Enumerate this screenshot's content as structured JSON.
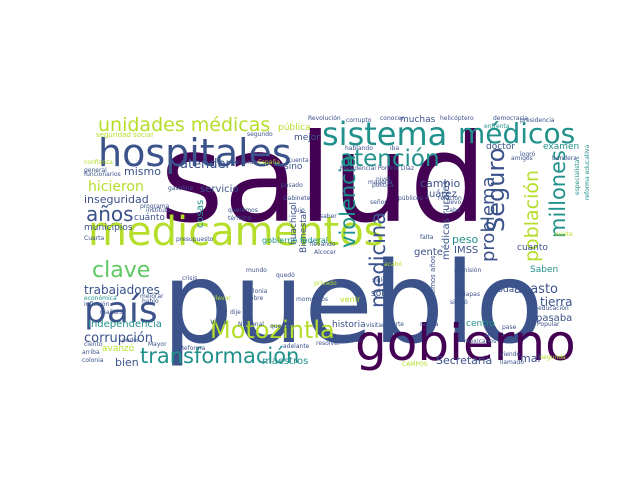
{
  "words": [
    {
      "text": "salud",
      "color": "#440154"
    },
    {
      "text": "pueblo",
      "color": "#3b528b"
    },
    {
      "text": "gobierno",
      "color": "#440154"
    },
    {
      "text": "medicamentos",
      "color": "#b5de2b"
    },
    {
      "text": "hospitales",
      "color": "#3b528b"
    },
    {
      "text": "sistema",
      "color": "#21918c"
    },
    {
      "text": "médicos",
      "color": "#21918c"
    },
    {
      "text": "país",
      "color": "#3b528b"
    },
    {
      "text": "Motozintla",
      "color": "#b5de2b"
    },
    {
      "text": "transformación",
      "color": "#21918c"
    },
    {
      "text": "atención",
      "color": "#21918c"
    },
    {
      "text": "unidades médicas",
      "color": "#b5de2b"
    },
    {
      "text": "clave",
      "color": "#5ec962"
    },
    {
      "text": "años",
      "color": "#3b528b"
    },
    {
      "text": "Seguro",
      "color": "#3b528b"
    },
    {
      "text": "problema",
      "color": "#3b528b"
    },
    {
      "text": "violencia",
      "color": "#21918c"
    },
    {
      "text": "medicina",
      "color": "#3b528b"
    },
    {
      "text": "millones",
      "color": "#21918c"
    },
    {
      "text": "población",
      "color": "#b5de2b"
    },
    {
      "text": "corrupción",
      "color": "#3b528b"
    },
    {
      "text": "trabajadores",
      "color": "#3b528b"
    },
    {
      "text": "hicieron",
      "color": "#b5de2b"
    },
    {
      "text": "inseguridad",
      "color": "#3b528b"
    },
    {
      "text": "atender",
      "color": "#3b528b"
    },
    {
      "text": "mismo",
      "color": "#3b528b"
    },
    {
      "text": "Independencia",
      "color": "#21918c"
    },
    {
      "text": "Secretaría",
      "color": "#3b528b"
    },
    {
      "text": "cambio",
      "color": "#3b528b"
    },
    {
      "text": "abasto",
      "color": "#3b528b"
    },
    {
      "text": "tierra",
      "color": "#3b528b"
    },
    {
      "text": "IMSS",
      "color": "#3b528b"
    },
    {
      "text": "peso",
      "color": "#21918c"
    },
    {
      "text": "gente",
      "color": "#3b528b"
    },
    {
      "text": "cuánto",
      "color": "#3b528b"
    },
    {
      "text": "servicio",
      "color": "#3b528b"
    },
    {
      "text": "municipios",
      "color": "#3b528b"
    },
    {
      "text": "sino",
      "color": "#3b528b"
    },
    {
      "text": "mal",
      "color": "#3b528b"
    },
    {
      "text": "historia",
      "color": "#3b528b"
    },
    {
      "text": "maestros",
      "color": "#21918c"
    },
    {
      "text": "muchas",
      "color": "#3b528b"
    },
    {
      "text": "doctor",
      "color": "#3b528b"
    },
    {
      "text": "examen",
      "color": "#21918c"
    },
    {
      "text": "pública",
      "color": "#b5de2b"
    },
    {
      "text": "pasaba",
      "color": "#3b528b"
    },
    {
      "text": "Saben",
      "color": "#21918c"
    },
    {
      "text": "cuanto",
      "color": "#3b528b"
    },
    {
      "text": "sólo",
      "color": "#3b528b"
    },
    {
      "text": "toda",
      "color": "#3b528b"
    },
    {
      "text": "bien",
      "color": "#3b528b"
    },
    {
      "text": "vida",
      "color": "#3b528b"
    },
    {
      "text": "centro",
      "color": "#21918c"
    },
    {
      "text": "avanzó",
      "color": "#b5de2b"
    },
    {
      "text": "venir",
      "color": "#b5de2b"
    },
    {
      "text": "mejor",
      "color": "#3b528b"
    },
    {
      "text": "huachicol",
      "color": "#3b528b"
    },
    {
      "text": "Bienestar",
      "color": "#3b528b"
    },
    {
      "text": "médicas rurales",
      "color": "#3b528b"
    },
    {
      "text": "Juárez",
      "color": "#3b528b"
    },
    {
      "text": "gobierno federal",
      "color": "#21918c"
    },
    {
      "text": "seguridad social",
      "color": "#b5de2b"
    },
    {
      "text": "Revolución",
      "color": "#3b528b"
    },
    {
      "text": "presidencia",
      "color": "#3b528b"
    },
    {
      "text": "helicóptero",
      "color": "#3b528b"
    },
    {
      "text": "Presidencial Porfirio Díaz",
      "color": "#3b528b"
    },
    {
      "text": "hablando",
      "color": "#3b528b"
    },
    {
      "text": "iba",
      "color": "#3b528b"
    },
    {
      "text": "conocer",
      "color": "#3b528b"
    },
    {
      "text": "segundo",
      "color": "#3b528b"
    },
    {
      "text": "gasolina",
      "color": "#3b528b"
    },
    {
      "text": "programa",
      "color": "#3b528b"
    },
    {
      "text": "presupuesto",
      "color": "#3b528b"
    },
    {
      "text": "educación",
      "color": "#3b528b"
    },
    {
      "text": "Chiapas",
      "color": "#3b528b"
    },
    {
      "text": "Popular",
      "color": "#3b528b"
    },
    {
      "text": "resolver",
      "color": "#3b528b"
    },
    {
      "text": "Nacional",
      "color": "#3b528b"
    },
    {
      "text": "pasado",
      "color": "#3b528b"
    },
    {
      "text": "siglo",
      "color": "#3b528b"
    },
    {
      "text": "cosas",
      "color": "#21918c"
    },
    {
      "text": "lujo",
      "color": "#3b528b"
    },
    {
      "text": "Alcocer",
      "color": "#3b528b"
    },
    {
      "text": "quedó",
      "color": "#3b528b"
    },
    {
      "text": "nivel",
      "color": "#3b528b"
    },
    {
      "text": "mayoría",
      "color": "#3b528b"
    },
    {
      "text": "cabo",
      "color": "#3b528b"
    },
    {
      "text": "Gabinete",
      "color": "#3b528b"
    },
    {
      "text": "llevando",
      "color": "#3b528b"
    },
    {
      "text": "pobre",
      "color": "#3b528b"
    },
    {
      "text": "crisis",
      "color": "#3b528b"
    },
    {
      "text": "Colonia",
      "color": "#3b528b"
    },
    {
      "text": "Reforma",
      "color": "#3b528b"
    },
    {
      "text": "colonia",
      "color": "#3b528b"
    },
    {
      "text": "mexicanos",
      "color": "#3b528b"
    },
    {
      "text": "tercera",
      "color": "#3b528b"
    },
    {
      "text": "España",
      "color": "#b5de2b"
    },
    {
      "text": "general",
      "color": "#3b528b"
    },
    {
      "text": "confianza",
      "color": "#b5de2b"
    },
    {
      "text": "mañana",
      "color": "#3b528b"
    },
    {
      "text": "funcionarios",
      "color": "#3b528b"
    },
    {
      "text": "Cuarta",
      "color": "#3b528b"
    },
    {
      "text": "inflación",
      "color": "#3b528b"
    },
    {
      "text": "económica",
      "color": "#21918c"
    },
    {
      "text": "mejorar",
      "color": "#3b528b"
    },
    {
      "text": "adelante",
      "color": "#3b528b"
    },
    {
      "text": "admisión",
      "color": "#3b528b"
    },
    {
      "text": "últimos años",
      "color": "#3b528b"
    },
    {
      "text": "privado",
      "color": "#b5de2b"
    },
    {
      "text": "visitar",
      "color": "#3b528b"
    },
    {
      "text": "parte",
      "color": "#3b528b"
    },
    {
      "text": "nunca",
      "color": "#3b528b"
    },
    {
      "text": "pase",
      "color": "#3b528b"
    },
    {
      "text": "altos",
      "color": "#3b528b"
    },
    {
      "text": "siguió",
      "color": "#3b528b"
    },
    {
      "text": "llamado",
      "color": "#3b528b"
    },
    {
      "text": "segunda",
      "color": "#b5de2b"
    },
    {
      "text": "CAMPOS",
      "color": "#b5de2b"
    },
    {
      "text": "falta",
      "color": "#3b528b"
    },
    {
      "text": "llevo",
      "color": "#3b528b"
    },
    {
      "text": "reforma educativa",
      "color": "#21918c"
    },
    {
      "text": "especialistas",
      "color": "#21918c"
    },
    {
      "text": "bandera",
      "color": "#3b528b"
    },
    {
      "text": "amigos",
      "color": "#3b528b"
    },
    {
      "text": "democracia",
      "color": "#3b528b"
    },
    {
      "text": "logró",
      "color": "#3b528b"
    },
    {
      "text": "enfrenta",
      "color": "#21918c"
    },
    {
      "text": "corrupto",
      "color": "#3b528b"
    },
    {
      "text": "dije",
      "color": "#3b528b"
    },
    {
      "text": "momentos",
      "color": "#3b528b"
    },
    {
      "text": "saber",
      "color": "#3b528b"
    },
    {
      "text": "señor",
      "color": "#3b528b"
    },
    {
      "text": "política",
      "color": "#3b528b"
    },
    {
      "text": "relación",
      "color": "#3b528b"
    },
    {
      "text": "públicos",
      "color": "#3b528b"
    },
    {
      "text": "viendo",
      "color": "#3b528b"
    },
    {
      "text": "poder",
      "color": "#3b528b"
    },
    {
      "text": "habló",
      "color": "#3b528b"
    },
    {
      "text": "arriba",
      "color": "#3b528b"
    },
    {
      "text": "Mayor",
      "color": "#3b528b"
    },
    {
      "text": "ciento",
      "color": "#3b528b"
    },
    {
      "text": "instituto",
      "color": "#3b528b"
    },
    {
      "text": "término",
      "color": "#3b528b"
    },
    {
      "text": "queremos",
      "color": "#3b528b"
    },
    {
      "text": "robaban",
      "color": "#3b528b"
    },
    {
      "text": "cuenta",
      "color": "#3b528b"
    },
    {
      "text": "querían",
      "color": "#3b528b"
    },
    {
      "text": "mundo",
      "color": "#3b528b"
    },
    {
      "text": "existe",
      "color": "#b5de2b"
    },
    {
      "text": "acabó",
      "color": "#b5de2b"
    },
    {
      "text": "llevar",
      "color": "#b5de2b"
    }
  ]
}
